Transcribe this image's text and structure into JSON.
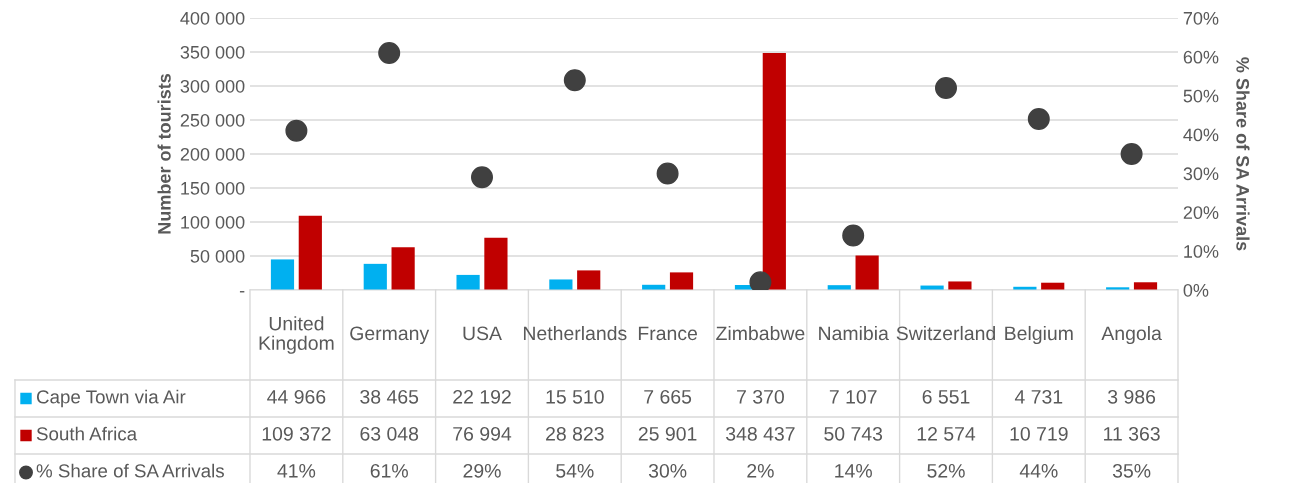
{
  "chart_data": {
    "type": "bar",
    "ylabel": "Number of tourists",
    "y2label": "% Share of SA Arrivals",
    "categories": [
      "United Kingdom",
      "Germany",
      "USA",
      "Netherlands",
      "France",
      "Zimbabwe",
      "Namibia",
      "Switzerland",
      "Belgium",
      "Angola"
    ],
    "series": [
      {
        "name": "Cape Town via Air",
        "color": "#00b0f0",
        "values": [
          44966,
          38465,
          22192,
          15510,
          7665,
          7370,
          7107,
          6551,
          4731,
          3986
        ],
        "value_labels": [
          "44 966",
          "38 465",
          "22 192",
          "15 510",
          "7 665",
          "7 370",
          "7 107",
          "6 551",
          "4 731",
          "3 986"
        ]
      },
      {
        "name": "South Africa",
        "color": "#c00000",
        "values": [
          109372,
          63048,
          76994,
          28823,
          25901,
          348437,
          50743,
          12574,
          10719,
          11363
        ],
        "value_labels": [
          "109 372",
          "63 048",
          "76 994",
          "28 823",
          "25 901",
          "348 437",
          "50 743",
          "12 574",
          "10 719",
          "11 363"
        ]
      },
      {
        "name": "% Share of SA Arrivals",
        "type": "scatter",
        "axis": "y2",
        "color": "#404040",
        "values": [
          41,
          61,
          29,
          54,
          30,
          2,
          14,
          52,
          44,
          35
        ],
        "value_labels": [
          "41%",
          "61%",
          "29%",
          "54%",
          "30%",
          "2%",
          "14%",
          "52%",
          "44%",
          "35%"
        ]
      }
    ],
    "ylim": [
      0,
      400000
    ],
    "yticks": [
      {
        "value": 0,
        "label": "-"
      },
      {
        "value": 50000,
        "label": "50 000"
      },
      {
        "value": 100000,
        "label": "100 000"
      },
      {
        "value": 150000,
        "label": "150 000"
      },
      {
        "value": 200000,
        "label": "200 000"
      },
      {
        "value": 250000,
        "label": "250 000"
      },
      {
        "value": 300000,
        "label": "300 000"
      },
      {
        "value": 350000,
        "label": "350 000"
      },
      {
        "value": 400000,
        "label": "400 000"
      }
    ],
    "y2lim": [
      0,
      70
    ],
    "y2ticks": [
      {
        "value": 0,
        "label": "0%"
      },
      {
        "value": 10,
        "label": "10%"
      },
      {
        "value": 20,
        "label": "20%"
      },
      {
        "value": 30,
        "label": "30%"
      },
      {
        "value": 40,
        "label": "40%"
      },
      {
        "value": 50,
        "label": "50%"
      },
      {
        "value": 60,
        "label": "60%"
      },
      {
        "value": 70,
        "label": "70%"
      }
    ],
    "grid": "y",
    "legend": "bottom",
    "marker": "circle"
  }
}
